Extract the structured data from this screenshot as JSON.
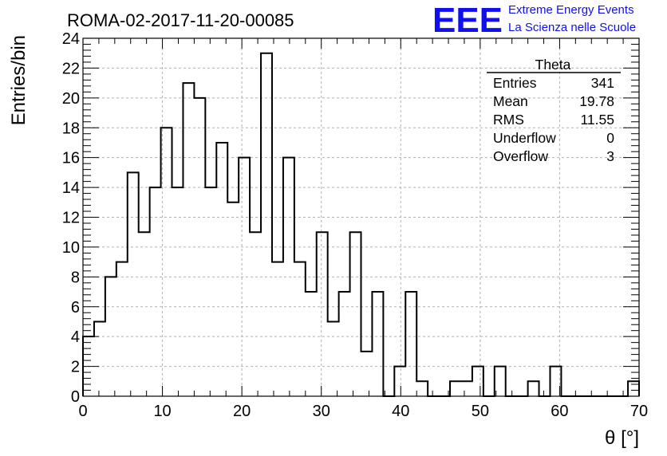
{
  "chart_data": {
    "type": "bar",
    "title": "ROMA-02-2017-11-20-00085",
    "xlabel": "θ [°]",
    "ylabel": "Entries/bin",
    "xlim": [
      0,
      70
    ],
    "ylim": [
      0,
      24
    ],
    "x_ticks": [
      "0",
      "10",
      "20",
      "30",
      "40",
      "50",
      "60",
      "70"
    ],
    "y_ticks": [
      "0",
      "2",
      "4",
      "6",
      "8",
      "10",
      "12",
      "14",
      "16",
      "18",
      "20",
      "22",
      "24"
    ],
    "grid": true,
    "bin_width": 1.4,
    "values": [
      4,
      5,
      8,
      9,
      15,
      11,
      14,
      18,
      14,
      21,
      20,
      14,
      17,
      13,
      16,
      11,
      23,
      9,
      16,
      9,
      7,
      11,
      5,
      7,
      11,
      3,
      7,
      0,
      2,
      7,
      1,
      0,
      0,
      1,
      1,
      2,
      0,
      2,
      0,
      0,
      1,
      0,
      2,
      0,
      0,
      0,
      0,
      0,
      0,
      1
    ]
  },
  "stats_box": {
    "name": "Theta",
    "rows": [
      {
        "label": "Entries",
        "value": "341"
      },
      {
        "label": "Mean",
        "value": "19.78"
      },
      {
        "label": "RMS",
        "value": "11.55"
      },
      {
        "label": "Underflow",
        "value": "0"
      },
      {
        "label": "Overflow",
        "value": "3"
      }
    ]
  },
  "logo": {
    "mark": "EEE",
    "line1": "Extreme Energy Events",
    "line2": "La Scienza nelle Scuole",
    "color": "#1010ee"
  }
}
